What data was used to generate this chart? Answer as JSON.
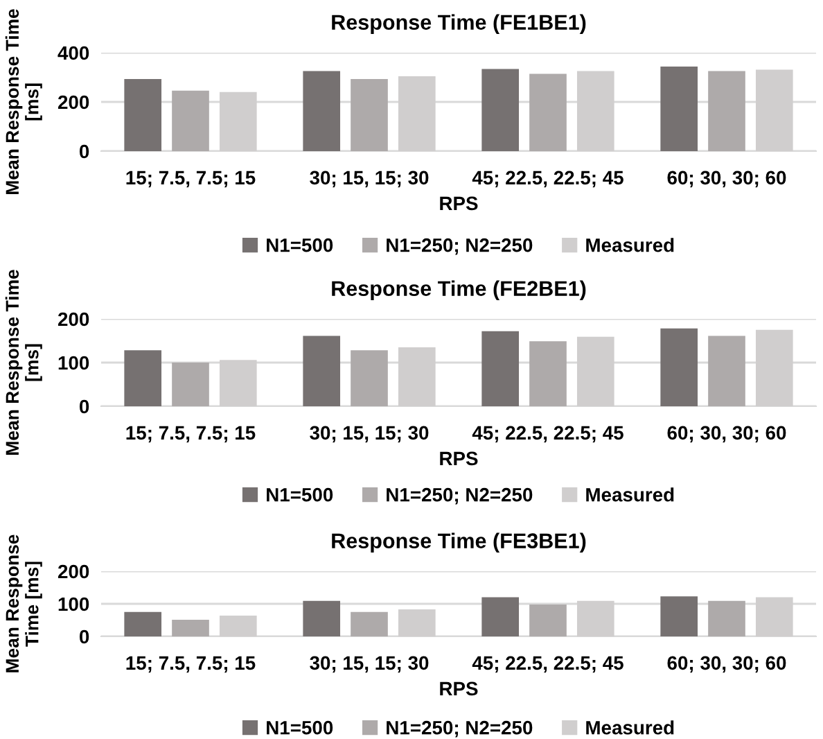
{
  "chart_data": [
    {
      "type": "bar",
      "title": "Response Time (FE1BE1)",
      "xlabel": "RPS",
      "ylabel": "Mean Response Time\n[ms]",
      "categories": [
        "15; 7.5, 7.5; 15",
        "30; 15, 15; 30",
        "45; 22.5, 22.5; 45",
        "60; 30, 30; 60"
      ],
      "series": [
        {
          "name": "N1=500",
          "color": "#767171",
          "values": [
            293,
            325,
            334,
            344
          ]
        },
        {
          "name": "N1=250; N2=250",
          "color": "#aeaaaa",
          "values": [
            246,
            293,
            314,
            325
          ]
        },
        {
          "name": "Measured",
          "color": "#d0cece",
          "values": [
            240,
            304,
            325,
            331
          ]
        }
      ],
      "ylim": [
        0,
        400
      ],
      "yticks": [
        0,
        200,
        400
      ],
      "grid": "y",
      "legend": "bottom"
    },
    {
      "type": "bar",
      "title": "Response Time (FE2BE1)",
      "xlabel": "RPS",
      "ylabel": "Mean Response Time\n[ms]",
      "categories": [
        "15; 7.5, 7.5; 15",
        "30; 15, 15; 30",
        "45; 22.5, 22.5; 45",
        "60; 30, 30; 60"
      ],
      "series": [
        {
          "name": "N1=500",
          "color": "#767171",
          "values": [
            128,
            161,
            172,
            178
          ]
        },
        {
          "name": "N1=250; N2=250",
          "color": "#aeaaaa",
          "values": [
            100,
            128,
            149,
            161
          ]
        },
        {
          "name": "Measured",
          "color": "#d0cece",
          "values": [
            106,
            135,
            159,
            175
          ]
        }
      ],
      "ylim": [
        0,
        200
      ],
      "yticks": [
        0,
        100,
        200
      ],
      "grid": "y",
      "legend": "bottom"
    },
    {
      "type": "bar",
      "title": "Response Time (FE3BE1)",
      "xlabel": "RPS",
      "ylabel": "Mean Response\nTime [ms]",
      "categories": [
        "15; 7.5, 7.5; 15",
        "30; 15, 15; 30",
        "45; 22.5, 22.5; 45",
        "60; 30, 30; 60"
      ],
      "series": [
        {
          "name": "N1=500",
          "color": "#767171",
          "values": [
            75,
            109,
            120,
            123
          ]
        },
        {
          "name": "N1=250; N2=250",
          "color": "#aeaaaa",
          "values": [
            51,
            75,
            98,
            109
          ]
        },
        {
          "name": "Measured",
          "color": "#d0cece",
          "values": [
            64,
            83,
            109,
            120
          ]
        }
      ],
      "ylim": [
        0,
        200
      ],
      "yticks": [
        0,
        100,
        200
      ],
      "grid": "y",
      "legend": "bottom"
    }
  ]
}
